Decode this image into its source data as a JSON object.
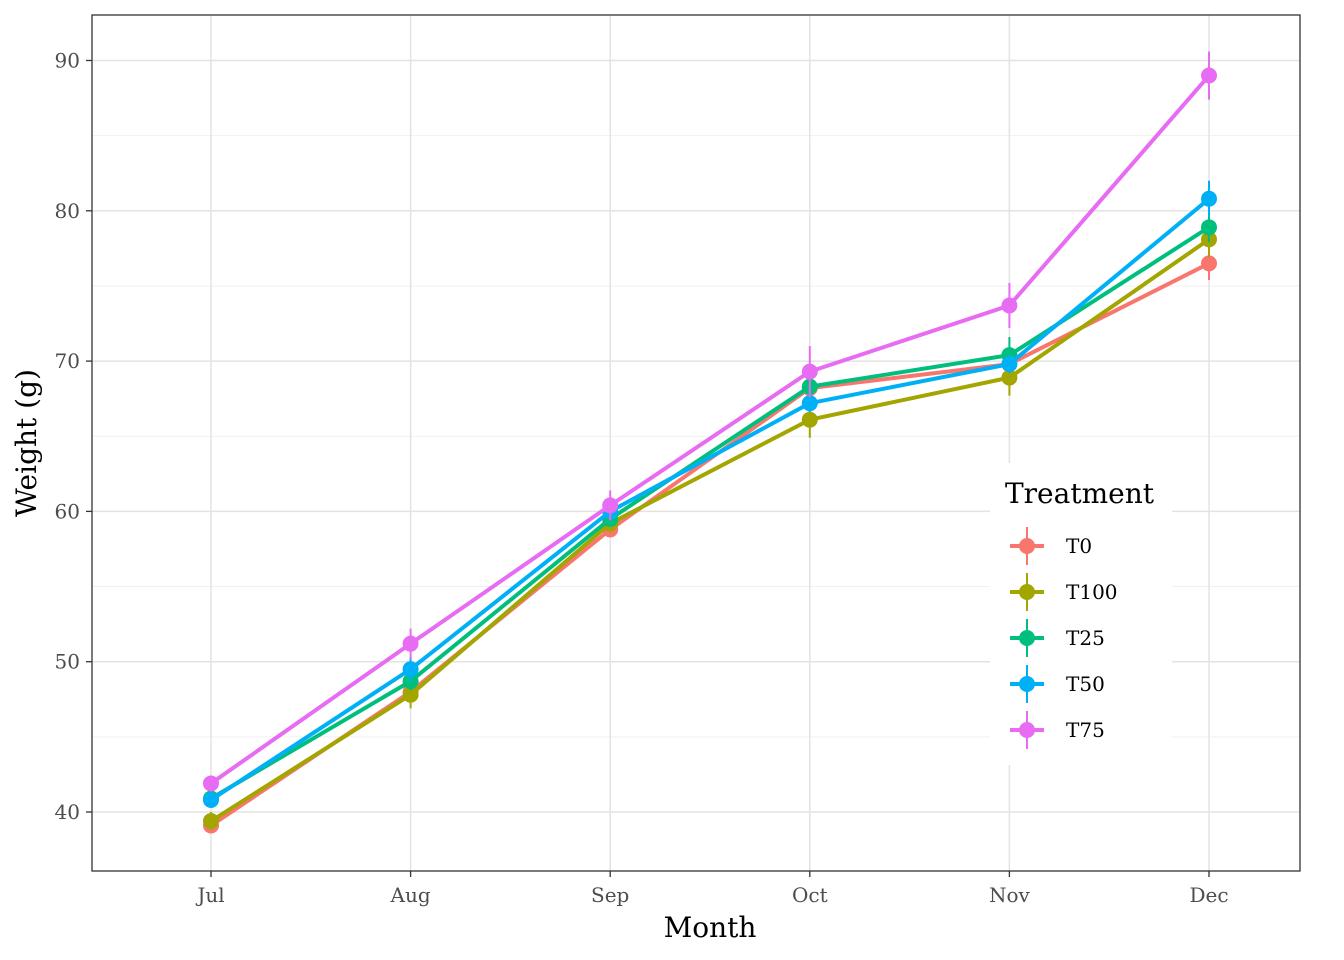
{
  "chart_data": {
    "type": "line",
    "xlabel": "Month",
    "ylabel": "Weight (g)",
    "categories": [
      "Jul",
      "Aug",
      "Sep",
      "Oct",
      "Nov",
      "Dec"
    ],
    "ylim": [
      36,
      93
    ],
    "y_ticks": [
      40,
      50,
      60,
      70,
      80,
      90
    ],
    "grid": true,
    "legend": {
      "title": "Treatment",
      "position": "right-inside"
    },
    "series": [
      {
        "name": "T0",
        "color": "#F8766D",
        "values": [
          39.1,
          48.0,
          58.8,
          68.2,
          69.8,
          76.5
        ],
        "errors": [
          0.5,
          0.6,
          0.5,
          0.6,
          0.6,
          1.1
        ]
      },
      {
        "name": "T100",
        "color": "#A3A500",
        "values": [
          39.4,
          47.8,
          59.2,
          66.1,
          68.9,
          78.1
        ],
        "errors": [
          0.6,
          0.9,
          0.6,
          1.2,
          1.2,
          1.2
        ]
      },
      {
        "name": "T25",
        "color": "#00BF7D",
        "values": [
          40.9,
          48.7,
          59.5,
          68.3,
          70.4,
          78.9
        ],
        "errors": [
          0.5,
          0.6,
          0.5,
          0.6,
          1.2,
          1.0
        ]
      },
      {
        "name": "T50",
        "color": "#00B0F6",
        "values": [
          40.8,
          49.5,
          60.0,
          67.2,
          69.8,
          80.8
        ],
        "errors": [
          0.5,
          0.8,
          0.5,
          0.6,
          0.6,
          1.2
        ]
      },
      {
        "name": "T75",
        "color": "#E76BF3",
        "values": [
          41.9,
          51.2,
          60.4,
          69.3,
          73.7,
          89.0
        ],
        "errors": [
          0.5,
          1.0,
          1.0,
          1.7,
          1.5,
          1.6
        ]
      }
    ]
  }
}
